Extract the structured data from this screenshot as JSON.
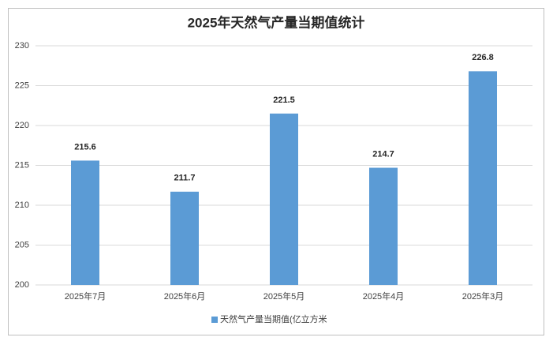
{
  "chart_data": {
    "type": "bar",
    "title": "2025年天然气产量当期值统计",
    "categories": [
      "2025年7月",
      "2025年6月",
      "2025年5月",
      "2025年4月",
      "2025年3月"
    ],
    "series": [
      {
        "name": "天然气产量当期值(亿立方米",
        "color": "#5b9bd5",
        "values": [
          215.6,
          211.7,
          221.5,
          214.7,
          226.8
        ]
      }
    ],
    "ylim": [
      200,
      230
    ],
    "yticks": [
      200,
      205,
      210,
      215,
      220,
      225,
      230
    ],
    "grid": true,
    "legend": "bottom"
  }
}
